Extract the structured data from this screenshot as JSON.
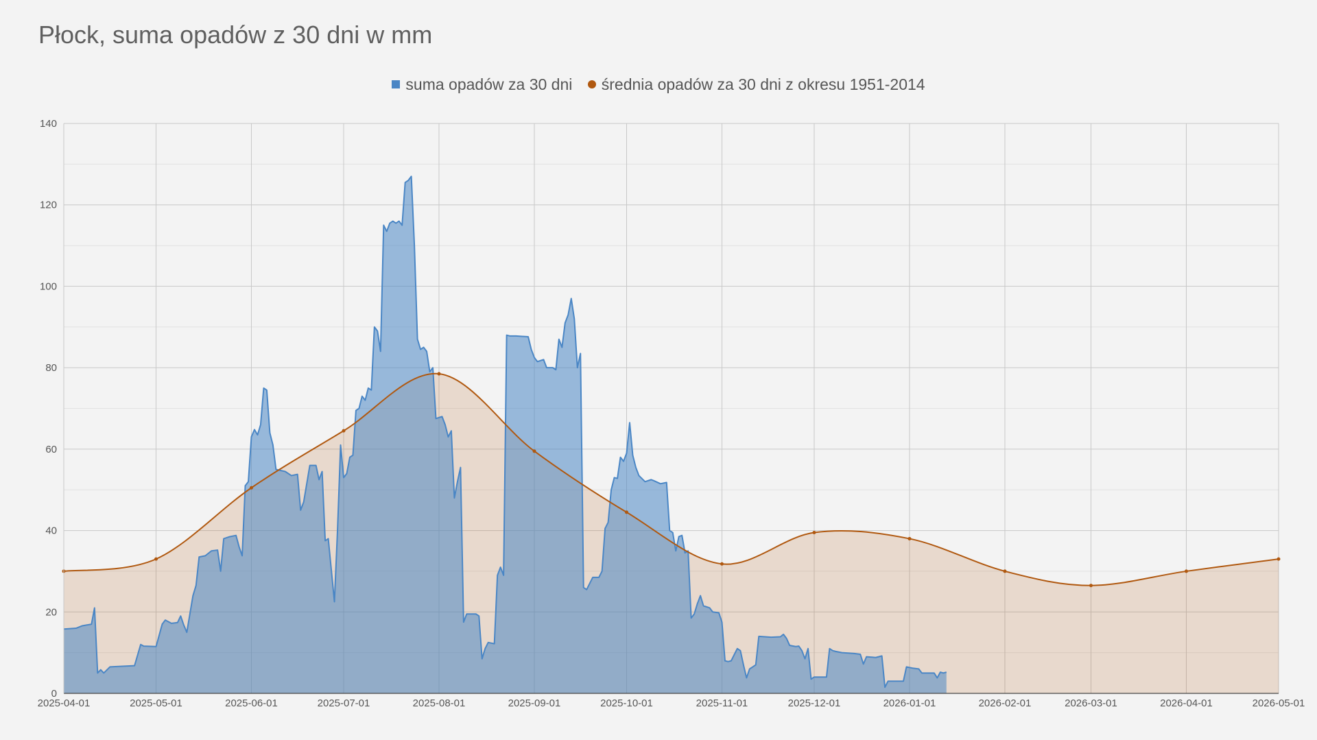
{
  "chart_data": {
    "type": "area",
    "title": "Płock, suma opadów z 30 dni w mm",
    "xlabel": "",
    "ylabel": "",
    "ylim": [
      0,
      140
    ],
    "yticks": [
      0,
      20,
      40,
      60,
      80,
      100,
      120,
      140
    ],
    "xlim": [
      "2025-04-01",
      "2026-05-01"
    ],
    "xticks": [
      "2025-04-01",
      "2025-05-01",
      "2025-06-01",
      "2025-07-01",
      "2025-08-01",
      "2025-09-01",
      "2025-10-01",
      "2025-11-01",
      "2025-12-01",
      "2026-01-01",
      "2026-02-01",
      "2026-03-01",
      "2026-04-01",
      "2026-05-01"
    ],
    "grid": true,
    "legend_position": "top-center",
    "series": [
      {
        "name": "suma opadów za 30 dni",
        "color": "#4a86c5",
        "points": [
          [
            "2025-04-01",
            15.8
          ],
          [
            "2025-04-05",
            16
          ],
          [
            "2025-04-07",
            16.6
          ],
          [
            "2025-04-10",
            17
          ],
          [
            "2025-04-11",
            21
          ],
          [
            "2025-04-12",
            5
          ],
          [
            "2025-04-13",
            5.8
          ],
          [
            "2025-04-14",
            5
          ],
          [
            "2025-04-16",
            6.5
          ],
          [
            "2025-04-24",
            6.8
          ],
          [
            "2025-04-26",
            12
          ],
          [
            "2025-04-27",
            11.6
          ],
          [
            "2025-05-01",
            11.5
          ],
          [
            "2025-05-03",
            17
          ],
          [
            "2025-05-04",
            18
          ],
          [
            "2025-05-06",
            17.2
          ],
          [
            "2025-05-08",
            17.4
          ],
          [
            "2025-05-09",
            19
          ],
          [
            "2025-05-10",
            16.8
          ],
          [
            "2025-05-11",
            15
          ],
          [
            "2025-05-13",
            24
          ],
          [
            "2025-05-14",
            26.5
          ],
          [
            "2025-05-15",
            33.5
          ],
          [
            "2025-05-17",
            33.8
          ],
          [
            "2025-05-19",
            35
          ],
          [
            "2025-05-21",
            35.2
          ],
          [
            "2025-05-22",
            30
          ],
          [
            "2025-05-23",
            38
          ],
          [
            "2025-05-25",
            38.5
          ],
          [
            "2025-05-27",
            38.8
          ],
          [
            "2025-05-28",
            36
          ],
          [
            "2025-05-29",
            33.8
          ],
          [
            "2025-05-30",
            51
          ],
          [
            "2025-05-31",
            52
          ],
          [
            "2025-06-01",
            63
          ],
          [
            "2025-06-02",
            64.8
          ],
          [
            "2025-06-03",
            63.5
          ],
          [
            "2025-06-04",
            66
          ],
          [
            "2025-06-05",
            75
          ],
          [
            "2025-06-06",
            74.5
          ],
          [
            "2025-06-07",
            64
          ],
          [
            "2025-06-08",
            61
          ],
          [
            "2025-06-09",
            55
          ],
          [
            "2025-06-12",
            54.5
          ],
          [
            "2025-06-14",
            53.5
          ],
          [
            "2025-06-16",
            53.8
          ],
          [
            "2025-06-17",
            45
          ],
          [
            "2025-06-18",
            47
          ],
          [
            "2025-06-20",
            56
          ],
          [
            "2025-06-22",
            56
          ],
          [
            "2025-06-23",
            52.5
          ],
          [
            "2025-06-24",
            54.5
          ],
          [
            "2025-06-25",
            37.5
          ],
          [
            "2025-06-26",
            38
          ],
          [
            "2025-06-28",
            22.5
          ],
          [
            "2025-06-29",
            40
          ],
          [
            "2025-06-30",
            61
          ],
          [
            "2025-07-01",
            53
          ],
          [
            "2025-07-02",
            54
          ],
          [
            "2025-07-03",
            58
          ],
          [
            "2025-07-04",
            58.5
          ],
          [
            "2025-07-05",
            69.5
          ],
          [
            "2025-07-06",
            70
          ],
          [
            "2025-07-07",
            73
          ],
          [
            "2025-07-08",
            72
          ],
          [
            "2025-07-09",
            75
          ],
          [
            "2025-07-10",
            74.5
          ],
          [
            "2025-07-11",
            90
          ],
          [
            "2025-07-12",
            89
          ],
          [
            "2025-07-13",
            84
          ],
          [
            "2025-07-14",
            115
          ],
          [
            "2025-07-15",
            113.5
          ],
          [
            "2025-07-16",
            115.5
          ],
          [
            "2025-07-17",
            116
          ],
          [
            "2025-07-18",
            115.5
          ],
          [
            "2025-07-19",
            116
          ],
          [
            "2025-07-20",
            115
          ],
          [
            "2025-07-21",
            125.5
          ],
          [
            "2025-07-22",
            126
          ],
          [
            "2025-07-23",
            127
          ],
          [
            "2025-07-24",
            110
          ],
          [
            "2025-07-25",
            87
          ],
          [
            "2025-07-26",
            84.5
          ],
          [
            "2025-07-27",
            85
          ],
          [
            "2025-07-28",
            84
          ],
          [
            "2025-07-29",
            79
          ],
          [
            "2025-07-30",
            80
          ],
          [
            "2025-07-31",
            67.5
          ],
          [
            "2025-08-02",
            68
          ],
          [
            "2025-08-03",
            66
          ],
          [
            "2025-08-04",
            63
          ],
          [
            "2025-08-05",
            64.5
          ],
          [
            "2025-08-06",
            48
          ],
          [
            "2025-08-07",
            52
          ],
          [
            "2025-08-08",
            55.5
          ],
          [
            "2025-08-09",
            17.5
          ],
          [
            "2025-08-10",
            19.5
          ],
          [
            "2025-08-13",
            19.5
          ],
          [
            "2025-08-14",
            19
          ],
          [
            "2025-08-15",
            8.5
          ],
          [
            "2025-08-16",
            11
          ],
          [
            "2025-08-17",
            12.5
          ],
          [
            "2025-08-19",
            12.2
          ],
          [
            "2025-08-20",
            29
          ],
          [
            "2025-08-21",
            31
          ],
          [
            "2025-08-22",
            29
          ],
          [
            "2025-08-23",
            88
          ],
          [
            "2025-08-24",
            87.8
          ],
          [
            "2025-08-26",
            87.8
          ],
          [
            "2025-08-30",
            87.6
          ],
          [
            "2025-08-31",
            84.5
          ],
          [
            "2025-09-01",
            82.5
          ],
          [
            "2025-09-02",
            81.5
          ],
          [
            "2025-09-04",
            82
          ],
          [
            "2025-09-05",
            80
          ],
          [
            "2025-09-07",
            80
          ],
          [
            "2025-09-08",
            79.5
          ],
          [
            "2025-09-09",
            87
          ],
          [
            "2025-09-10",
            85
          ],
          [
            "2025-09-11",
            91
          ],
          [
            "2025-09-12",
            93
          ],
          [
            "2025-09-13",
            97
          ],
          [
            "2025-09-14",
            92
          ],
          [
            "2025-09-15",
            80
          ],
          [
            "2025-09-16",
            83.5
          ],
          [
            "2025-09-17",
            26
          ],
          [
            "2025-09-18",
            25.5
          ],
          [
            "2025-09-20",
            28.5
          ],
          [
            "2025-09-22",
            28.5
          ],
          [
            "2025-09-23",
            30
          ],
          [
            "2025-09-24",
            40.5
          ],
          [
            "2025-09-25",
            42
          ],
          [
            "2025-09-26",
            50
          ],
          [
            "2025-09-27",
            53
          ],
          [
            "2025-09-28",
            52.8
          ],
          [
            "2025-09-29",
            58
          ],
          [
            "2025-09-30",
            57
          ],
          [
            "2025-10-01",
            59
          ],
          [
            "2025-10-02",
            66.5
          ],
          [
            "2025-10-03",
            58.5
          ],
          [
            "2025-10-04",
            55.5
          ],
          [
            "2025-10-05",
            53.5
          ],
          [
            "2025-10-07",
            52
          ],
          [
            "2025-10-09",
            52.5
          ],
          [
            "2025-10-10",
            52.2
          ],
          [
            "2025-10-12",
            51.5
          ],
          [
            "2025-10-14",
            51.8
          ],
          [
            "2025-10-15",
            40
          ],
          [
            "2025-10-16",
            39.5
          ],
          [
            "2025-10-17",
            35
          ],
          [
            "2025-10-18",
            38.5
          ],
          [
            "2025-10-19",
            38.8
          ],
          [
            "2025-10-20",
            34.5
          ],
          [
            "2025-10-21",
            35
          ],
          [
            "2025-10-22",
            18.5
          ],
          [
            "2025-10-23",
            19.5
          ],
          [
            "2025-10-24",
            22
          ],
          [
            "2025-10-25",
            24
          ],
          [
            "2025-10-26",
            21.5
          ],
          [
            "2025-10-28",
            21
          ],
          [
            "2025-10-29",
            20
          ],
          [
            "2025-10-31",
            19.8
          ],
          [
            "2025-11-01",
            17.5
          ],
          [
            "2025-11-02",
            8
          ],
          [
            "2025-11-03",
            7.8
          ],
          [
            "2025-11-04",
            8
          ],
          [
            "2025-11-05",
            9.5
          ],
          [
            "2025-11-06",
            11
          ],
          [
            "2025-11-07",
            10.5
          ],
          [
            "2025-11-08",
            7
          ],
          [
            "2025-11-09",
            3.8
          ],
          [
            "2025-11-10",
            6
          ],
          [
            "2025-11-11",
            6.5
          ],
          [
            "2025-11-12",
            7
          ],
          [
            "2025-11-13",
            14
          ],
          [
            "2025-11-17",
            13.8
          ],
          [
            "2025-11-20",
            13.9
          ],
          [
            "2025-11-21",
            14.5
          ],
          [
            "2025-11-22",
            13.5
          ],
          [
            "2025-11-23",
            11.8
          ],
          [
            "2025-11-25",
            11.5
          ],
          [
            "2025-11-26",
            11.6
          ],
          [
            "2025-11-27",
            10.5
          ],
          [
            "2025-11-28",
            8.5
          ],
          [
            "2025-11-29",
            11
          ],
          [
            "2025-11-30",
            3.5
          ],
          [
            "2025-12-01",
            4
          ],
          [
            "2025-12-05",
            4
          ],
          [
            "2025-12-06",
            11
          ],
          [
            "2025-12-07",
            10.5
          ],
          [
            "2025-12-08",
            10.3
          ],
          [
            "2025-12-10",
            10
          ],
          [
            "2025-12-14",
            9.8
          ],
          [
            "2025-12-16",
            9.6
          ],
          [
            "2025-12-17",
            7.2
          ],
          [
            "2025-12-18",
            9
          ],
          [
            "2025-12-21",
            8.8
          ],
          [
            "2025-12-23",
            9.2
          ],
          [
            "2025-12-24",
            1.5
          ],
          [
            "2025-12-25",
            3
          ],
          [
            "2025-12-27",
            3
          ],
          [
            "2025-12-30",
            3
          ],
          [
            "2025-12-31",
            6.5
          ],
          [
            "2026-01-02",
            6.2
          ],
          [
            "2026-01-04",
            6
          ],
          [
            "2026-01-05",
            5
          ],
          [
            "2026-01-09",
            5
          ],
          [
            "2026-01-10",
            3.8
          ],
          [
            "2026-01-11",
            5.2
          ],
          [
            "2026-01-12",
            5
          ],
          [
            "2026-01-13",
            5.2
          ]
        ]
      },
      {
        "name": "średnia opadów za 30 dni z okresu 1951-2014",
        "color": "#b0580f",
        "points": [
          [
            "2025-04-01",
            30
          ],
          [
            "2025-05-01",
            33
          ],
          [
            "2025-06-01",
            50.5
          ],
          [
            "2025-07-01",
            64.5
          ],
          [
            "2025-08-01",
            78.5
          ],
          [
            "2025-09-01",
            59.5
          ],
          [
            "2025-10-01",
            44.5
          ],
          [
            "2025-11-01",
            31.8
          ],
          [
            "2025-12-01",
            39.5
          ],
          [
            "2026-01-01",
            38
          ],
          [
            "2026-02-01",
            30
          ],
          [
            "2026-03-01",
            26.5
          ],
          [
            "2026-04-01",
            30
          ],
          [
            "2026-05-01",
            33
          ]
        ]
      }
    ]
  }
}
